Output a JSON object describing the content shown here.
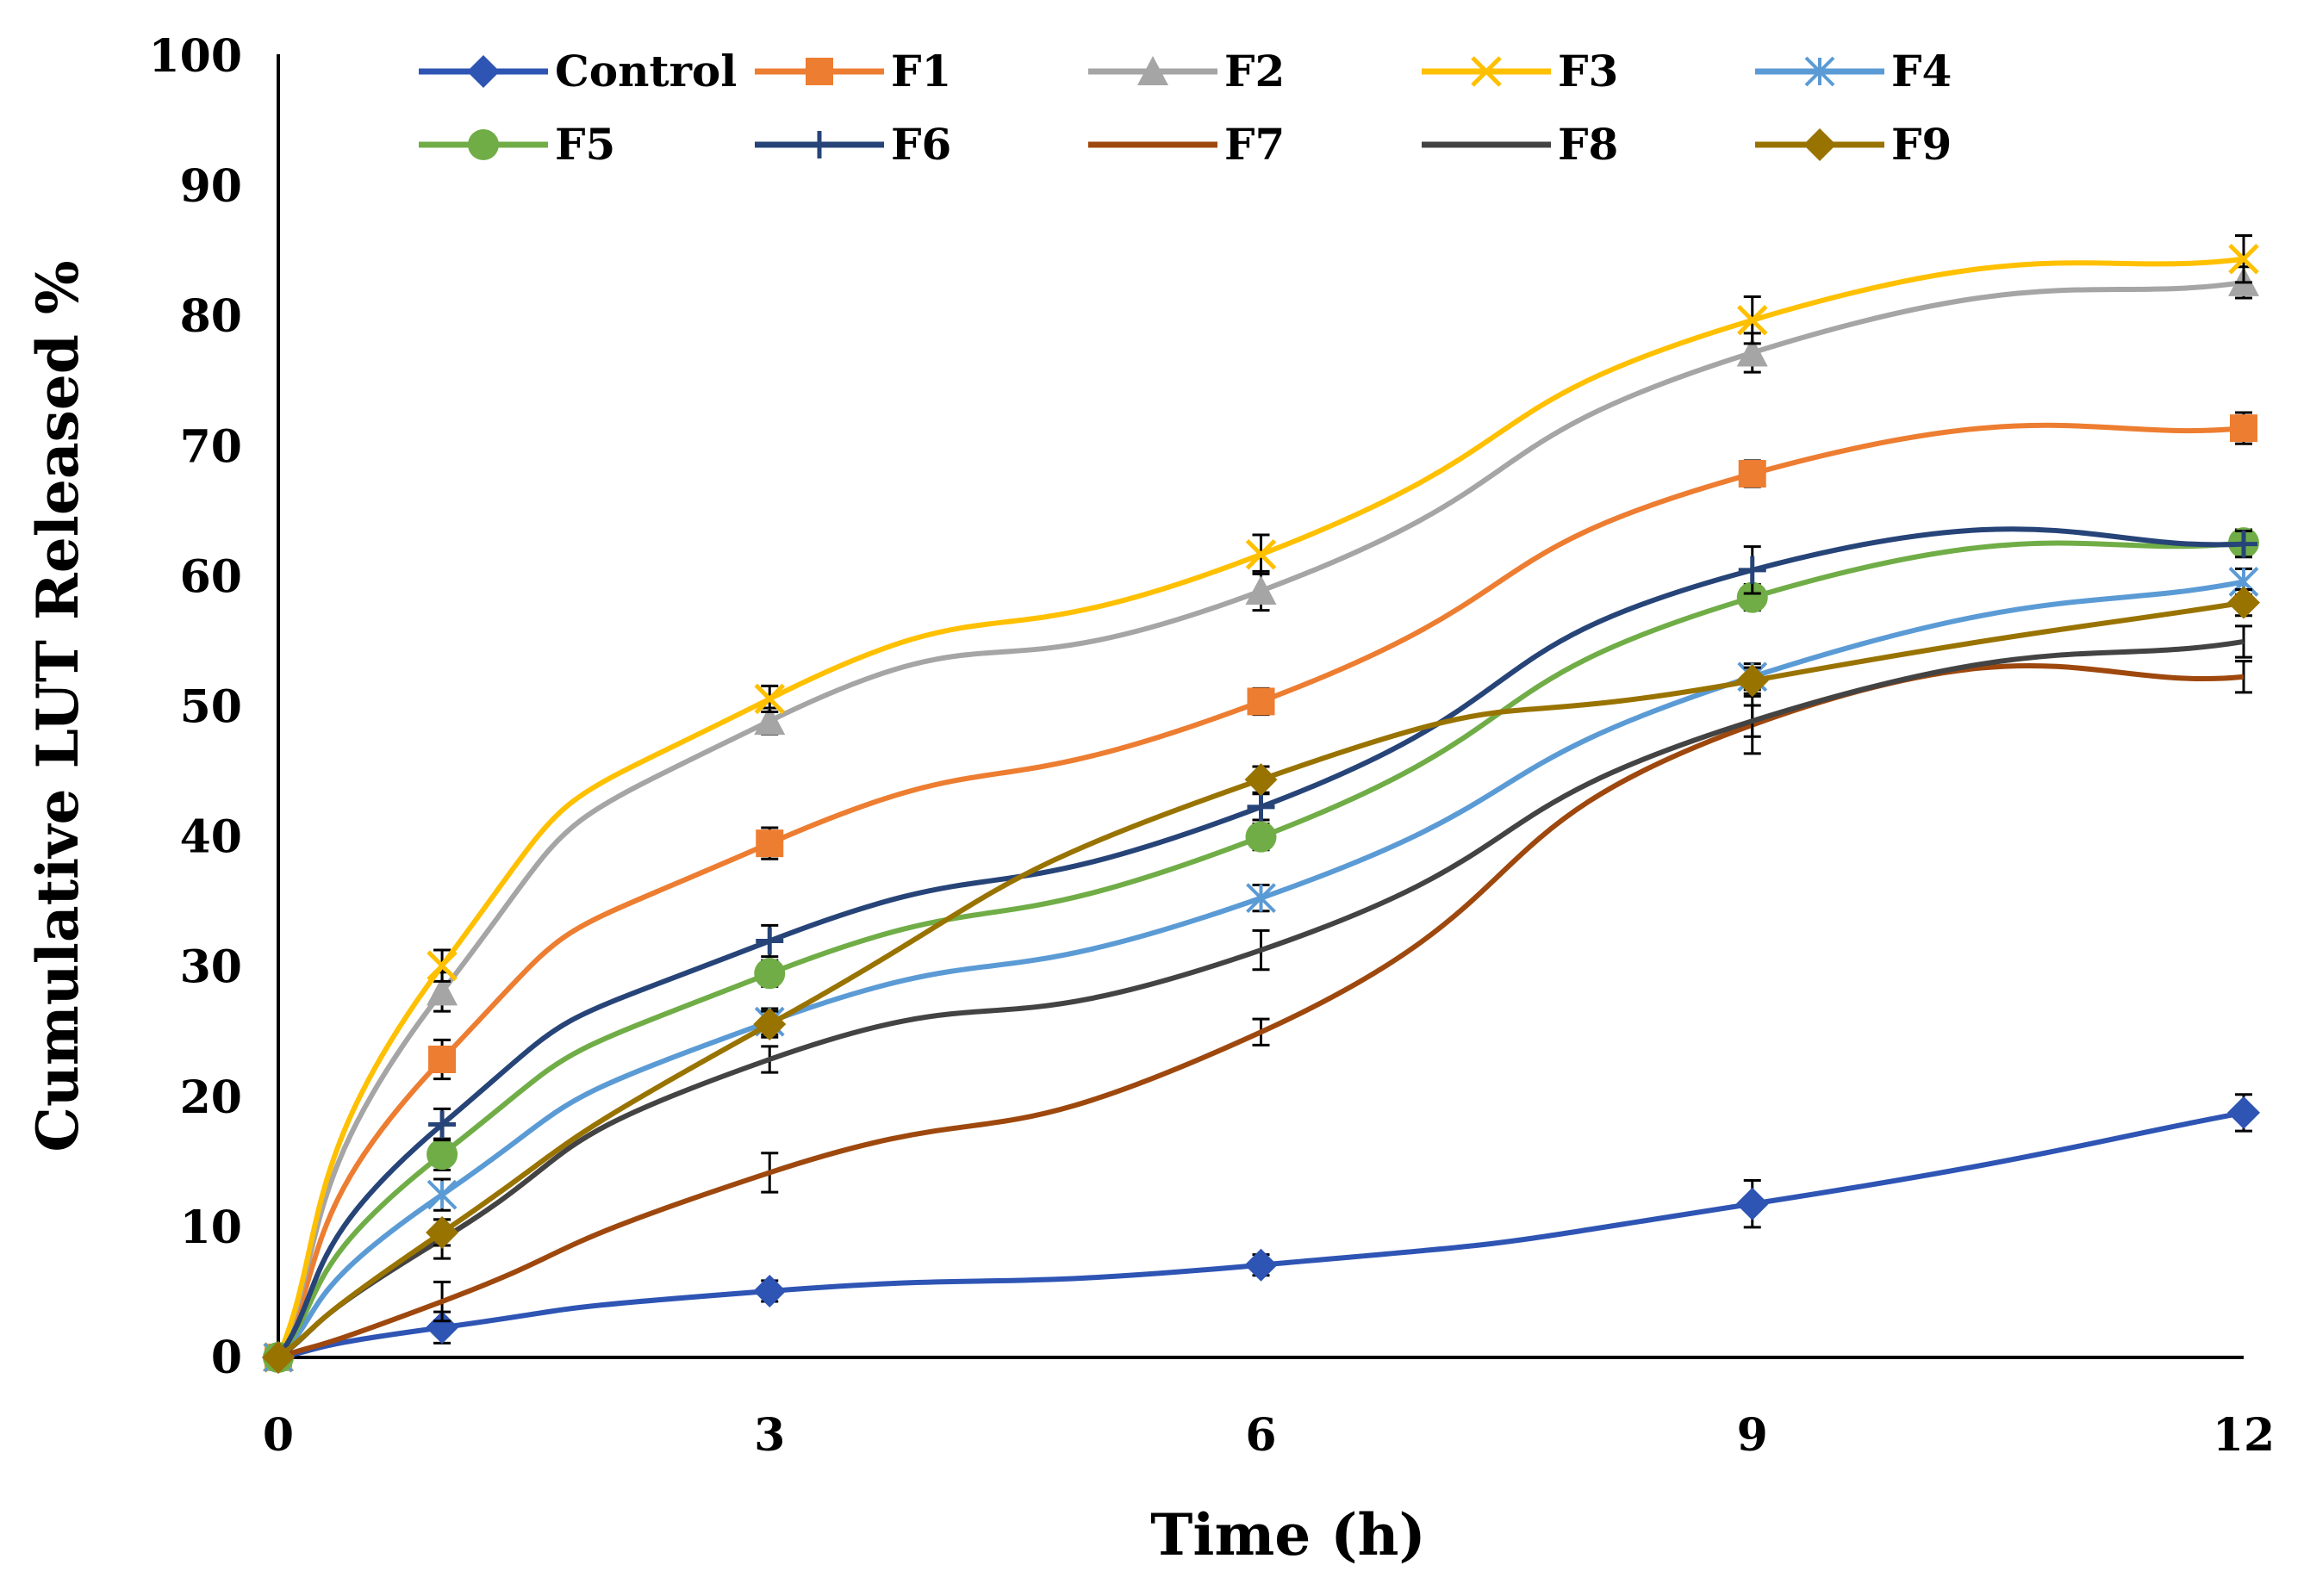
{
  "chart_data": {
    "type": "line",
    "title": "",
    "xlabel": "Time (h)",
    "ylabel": "Cumulative LUT Released %",
    "x": [
      0,
      1,
      3,
      6,
      9,
      12
    ],
    "xticks": [
      "0",
      "3",
      "6",
      "9",
      "12"
    ],
    "xtick_values": [
      0,
      3,
      6,
      9,
      12
    ],
    "yticks": [
      "0",
      "10",
      "20",
      "30",
      "40",
      "50",
      "60",
      "70",
      "80",
      "90",
      "100"
    ],
    "xlim": [
      0,
      12
    ],
    "ylim": [
      0,
      100
    ],
    "grid": false,
    "legend_position": "top",
    "series": [
      {
        "name": "Control",
        "color": "#2E54B4",
        "marker": "diamond",
        "values": [
          0,
          2.3,
          5.1,
          7.1,
          11.8,
          18.8
        ],
        "error": [
          0,
          1.2,
          0.8,
          0.8,
          1.8,
          1.4
        ]
      },
      {
        "name": "F1",
        "color": "#ED7D31",
        "marker": "square",
        "values": [
          0,
          22.9,
          39.5,
          50.4,
          67.9,
          71.4
        ],
        "error": [
          0,
          1.5,
          1.2,
          1.0,
          1.0,
          1.2
        ]
      },
      {
        "name": "F2",
        "color": "#A5A5A5",
        "marker": "triangle",
        "values": [
          0,
          28.1,
          48.9,
          58.9,
          77.2,
          82.6
        ],
        "error": [
          0,
          1.5,
          1.0,
          1.5,
          1.5,
          1.2
        ]
      },
      {
        "name": "F3",
        "color": "#FFC000",
        "marker": "x",
        "values": [
          0,
          30.1,
          50.6,
          61.7,
          79.7,
          84.4
        ],
        "error": [
          0,
          1.2,
          1.0,
          1.5,
          1.8,
          1.8
        ]
      },
      {
        "name": "F4",
        "color": "#5B9BD5",
        "marker": "asterisk",
        "values": [
          0,
          12.5,
          25.8,
          35.3,
          52.3,
          59.6
        ],
        "error": [
          0,
          1.2,
          1.0,
          1.0,
          1.0,
          1.0
        ]
      },
      {
        "name": "F5",
        "color": "#70AD47",
        "marker": "circle",
        "values": [
          0,
          15.6,
          29.5,
          40.0,
          58.4,
          62.6
        ],
        "error": [
          0,
          1.2,
          1.0,
          1.0,
          1.0,
          1.0
        ]
      },
      {
        "name": "F6",
        "color": "#264478",
        "marker": "plus",
        "values": [
          0,
          17.9,
          32.0,
          42.3,
          60.5,
          62.5
        ],
        "error": [
          0,
          1.2,
          1.2,
          1.0,
          1.8,
          1.0
        ]
      },
      {
        "name": "F7",
        "color": "#9E480E",
        "marker": "none",
        "values": [
          0,
          4.3,
          14.2,
          25.0,
          48.6,
          52.3
        ],
        "error": [
          0,
          1.5,
          1.5,
          1.0,
          2.2,
          1.2
        ]
      },
      {
        "name": "F8",
        "color": "#434343",
        "marker": "none",
        "values": [
          0,
          9.1,
          22.9,
          31.3,
          48.9,
          55.0
        ],
        "error": [
          0,
          1.5,
          1.0,
          1.5,
          1.2,
          1.2
        ]
      },
      {
        "name": "F9",
        "color": "#997300",
        "marker": "diamond",
        "values": [
          0,
          9.6,
          25.6,
          44.4,
          52.0,
          58.0
        ],
        "error": [
          0,
          1.0,
          1.0,
          1.0,
          1.0,
          1.0
        ]
      }
    ]
  }
}
